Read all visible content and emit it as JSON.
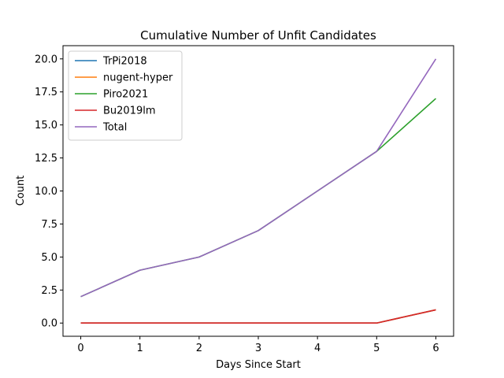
{
  "chart_data": {
    "type": "line",
    "title": "Cumulative Number of Unfit Candidates",
    "xlabel": "Days Since Start",
    "ylabel": "Count",
    "x": [
      0,
      1,
      2,
      3,
      4,
      5,
      6
    ],
    "xlim": [
      -0.3,
      6.3
    ],
    "ylim": [
      -1.0,
      21.0
    ],
    "xticks": [
      0,
      1,
      2,
      3,
      4,
      5,
      6
    ],
    "yticks": [
      0.0,
      2.5,
      5.0,
      7.5,
      10.0,
      12.5,
      15.0,
      17.5,
      20.0
    ],
    "xtick_labels": [
      "0",
      "1",
      "2",
      "3",
      "4",
      "5",
      "6"
    ],
    "ytick_labels": [
      "0.0",
      "2.5",
      "5.0",
      "7.5",
      "10.0",
      "12.5",
      "15.0",
      "17.5",
      "20.0"
    ],
    "grid": false,
    "legend_position": "top-left",
    "series": [
      {
        "name": "TrPi2018",
        "color": "#1f77b4",
        "values": [
          0,
          0,
          0,
          0,
          0,
          0,
          1
        ]
      },
      {
        "name": "nugent-hyper",
        "color": "#ff7f0e",
        "values": [
          0,
          0,
          0,
          0,
          0,
          0,
          1
        ]
      },
      {
        "name": "Piro2021",
        "color": "#2ca02c",
        "values": [
          2,
          4,
          5,
          7,
          10,
          13,
          17
        ]
      },
      {
        "name": "Bu2019lm",
        "color": "#d62728",
        "values": [
          0,
          0,
          0,
          0,
          0,
          0,
          1
        ]
      },
      {
        "name": "Total",
        "color": "#9467bd",
        "values": [
          2,
          4,
          5,
          7,
          10,
          13,
          20
        ]
      }
    ]
  }
}
